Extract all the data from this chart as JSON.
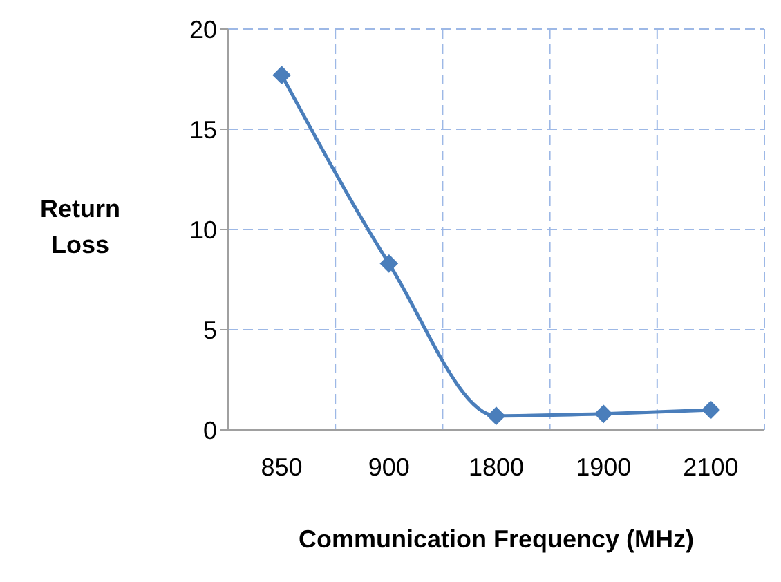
{
  "chart_data": {
    "type": "line",
    "xlabel": "Communication Frequency (MHz)",
    "ylabel": "Return Loss",
    "categories": [
      "850",
      "900",
      "1800",
      "1900",
      "2100"
    ],
    "series": [
      {
        "color": "#4a7ebb",
        "values": [
          17.7,
          8.3,
          0.7,
          0.8,
          1.0
        ]
      }
    ],
    "ylim": [
      0,
      20
    ],
    "yticks": [
      0,
      5,
      10,
      15,
      20
    ],
    "grid": true,
    "marker": "diamond",
    "line_style": "solid"
  }
}
